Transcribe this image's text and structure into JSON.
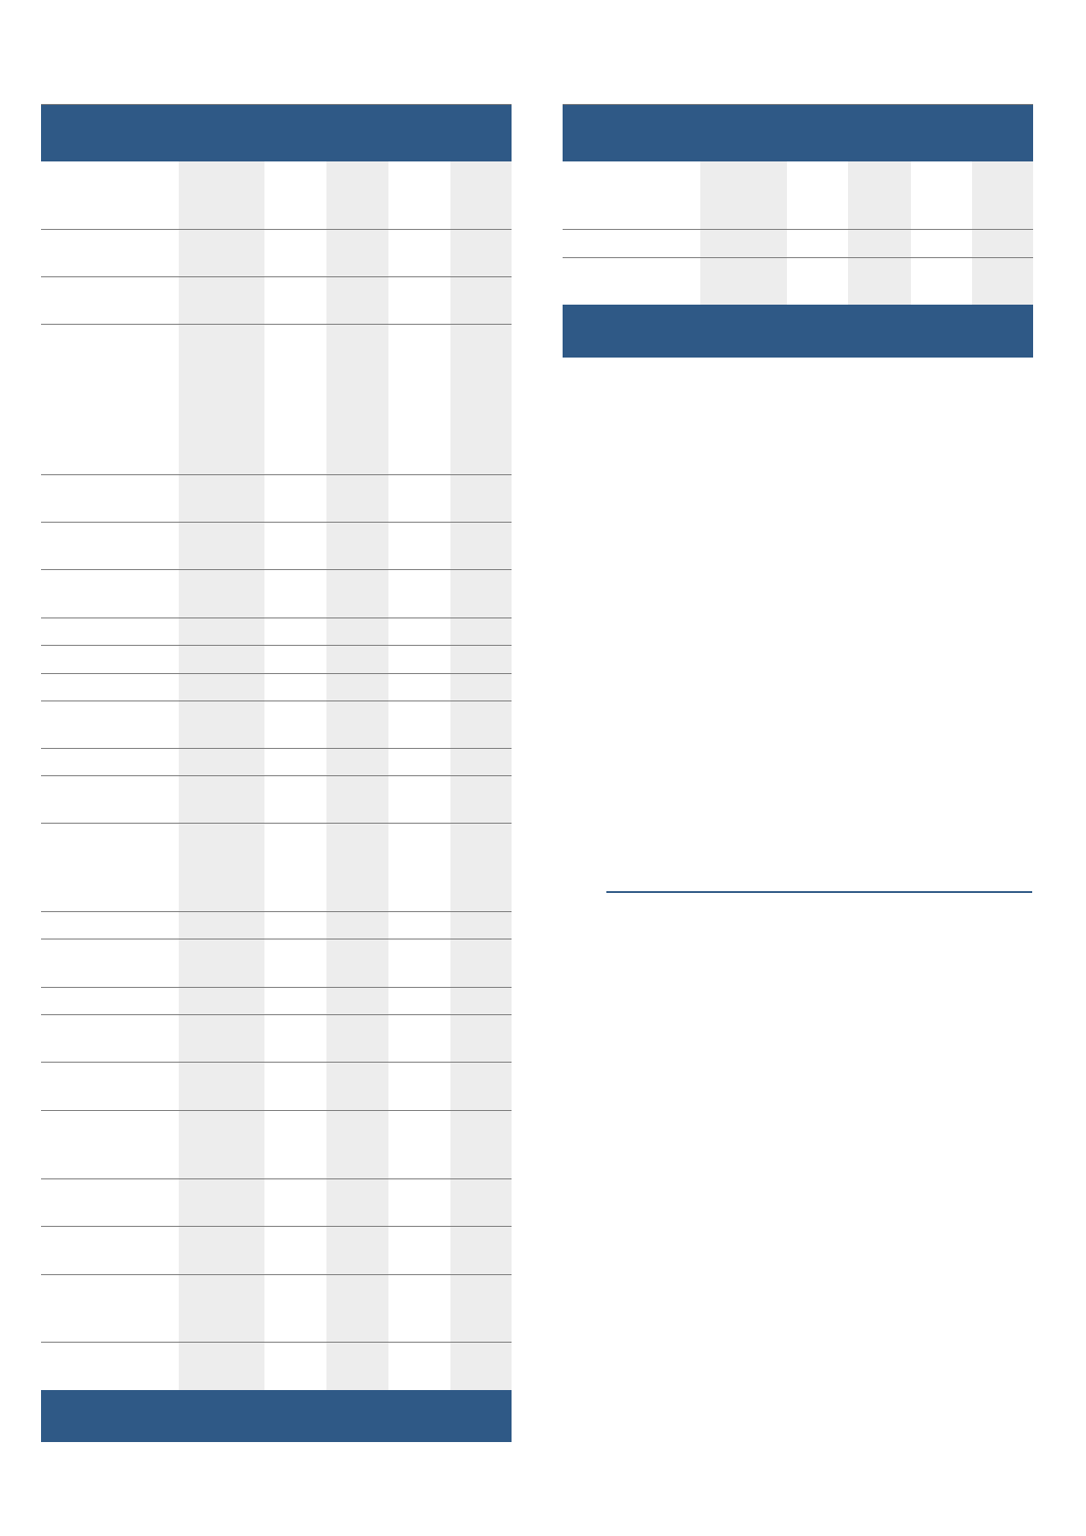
{
  "colors": {
    "header_background": "#2f5986",
    "shaded_column": "#ededed",
    "row_divider": "#7a7a7a",
    "accent_rule": "#2f5986"
  },
  "left_table": {
    "header": "",
    "footer": ""
  },
  "right_table": {
    "header": "",
    "footer": ""
  }
}
